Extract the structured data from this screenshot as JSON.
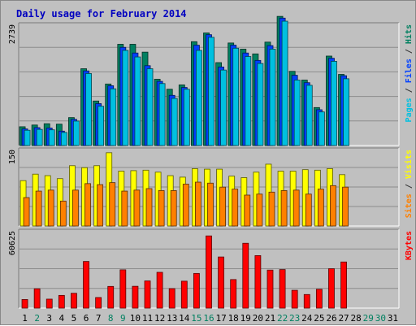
{
  "chart_data": {
    "type": "bar",
    "title": "Daily usage for February 2014",
    "x": [
      "1",
      "2",
      "3",
      "4",
      "5",
      "6",
      "7",
      "8",
      "9",
      "10",
      "11",
      "12",
      "13",
      "14",
      "15",
      "16",
      "17",
      "18",
      "19",
      "20",
      "21",
      "22",
      "23",
      "24",
      "25",
      "26",
      "27",
      "28",
      "29",
      "30",
      "31"
    ],
    "x_weekend": [
      false,
      true,
      false,
      false,
      false,
      false,
      false,
      true,
      true,
      false,
      false,
      false,
      false,
      false,
      true,
      true,
      false,
      false,
      false,
      false,
      false,
      true,
      true,
      false,
      false,
      false,
      false,
      false,
      true,
      true,
      false
    ],
    "panels": [
      {
        "name": "hits-files-pages",
        "ytick_label": "2739",
        "ymax": 2739,
        "right_labels": [
          {
            "text": "Pages",
            "color": "#00c0e0"
          },
          {
            "text": " / ",
            "color": "#333333"
          },
          {
            "text": "Files",
            "color": "#0040ff"
          },
          {
            "text": " / ",
            "color": "#333333"
          },
          {
            "text": "Hits",
            "color": "#008060"
          }
        ],
        "series": [
          {
            "name": "Hits",
            "color": "#008060",
            "values": [
              430,
              470,
              500,
              490,
              640,
              1760,
              1020,
              1410,
              2320,
              2320,
              2140,
              1520,
              1290,
              1390,
              2380,
              2580,
              1900,
              2350,
              2210,
              2100,
              2370,
              2960,
              1700,
              1500,
              870,
              2050,
              1630
            ]
          },
          {
            "name": "Files",
            "color": "#0040ff",
            "values": [
              380,
              410,
              400,
              330,
              600,
              1710,
              960,
              1370,
              2250,
              2120,
              1830,
              1470,
              1150,
              1330,
              2300,
              2540,
              1800,
              2300,
              2120,
              1950,
              2290,
              2920,
              1610,
              1440,
              820,
              2000,
              1600
            ]
          },
          {
            "name": "Pages",
            "color": "#00c0e0",
            "values": [
              350,
              370,
              360,
              300,
              560,
              1650,
              900,
              1300,
              2180,
              2030,
              1760,
              1420,
              1080,
              1290,
              2180,
              2480,
              1730,
              2230,
              2040,
              1880,
              2210,
              2850,
              1500,
              1380,
              770,
              1930,
              1530
            ]
          }
        ]
      },
      {
        "name": "visits-sites",
        "ytick_label": "150",
        "ymax": 150,
        "right_labels": [
          {
            "text": "Sites",
            "color": "#ff8000"
          },
          {
            "text": " / ",
            "color": "#333333"
          },
          {
            "text": "Visits",
            "color": "#ffff00"
          }
        ],
        "series": [
          {
            "name": "Visits",
            "color": "#ffff00",
            "values": [
              91,
              104,
              101,
              95,
              121,
              117,
              121,
              147,
              110,
              111,
              112,
              108,
              101,
              98,
              115,
              114,
              114,
              100,
              97,
              108,
              124,
              110,
              110,
              113,
              112,
              115,
              103
            ]
          },
          {
            "name": "Sites",
            "color": "#ff8000",
            "values": [
              57,
              70,
              72,
              50,
              72,
              85,
              83,
              87,
              70,
              72,
              75,
              71,
              71,
              84,
              88,
              86,
              78,
              74,
              62,
              64,
              68,
              71,
              72,
              64,
              74,
              81,
              78
            ]
          }
        ]
      },
      {
        "name": "kbytes",
        "ytick_label": "60625",
        "ymax": 60625,
        "right_labels": [
          {
            "text": "KBytes",
            "color": "#ff0000"
          }
        ],
        "series": [
          {
            "name": "KBytes",
            "color": "#ff0000",
            "values": [
              6900,
              15500,
              7200,
              10200,
              11900,
              37400,
              8500,
              17400,
              30700,
              17500,
              21800,
              28700,
              15600,
              21600,
              27800,
              57900,
              41000,
              22900,
              52000,
              42100,
              30500,
              30900,
              14300,
              10900,
              15100,
              31600,
              37000
            ]
          }
        ]
      }
    ]
  }
}
